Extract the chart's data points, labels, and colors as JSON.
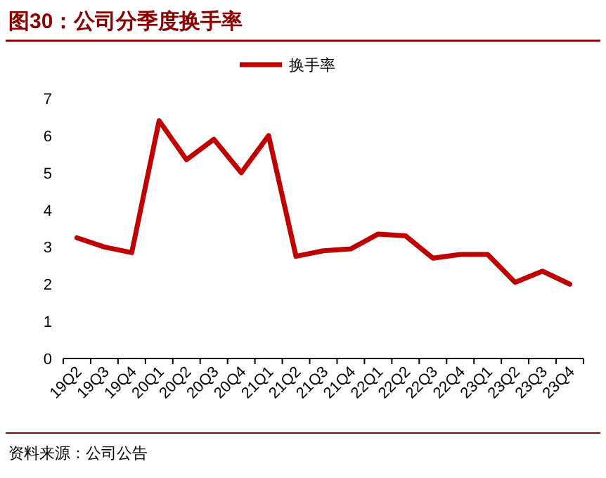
{
  "chart_data": {
    "type": "line",
    "title": "图30：公司分季度换手率",
    "categories": [
      "19Q2",
      "19Q3",
      "19Q4",
      "20Q1",
      "20Q2",
      "20Q3",
      "20Q4",
      "21Q1",
      "21Q2",
      "21Q3",
      "21Q4",
      "22Q1",
      "22Q2",
      "22Q3",
      "22Q4",
      "23Q1",
      "23Q2",
      "23Q3",
      "23Q4"
    ],
    "series": [
      {
        "name": "换手率",
        "color": "#c00000",
        "values": [
          3.25,
          3.0,
          2.85,
          6.4,
          5.35,
          5.9,
          5.0,
          6.0,
          2.75,
          2.9,
          2.95,
          3.35,
          3.3,
          2.7,
          2.8,
          2.8,
          2.05,
          2.35,
          2.0
        ]
      }
    ],
    "ylim": [
      0,
      7
    ],
    "yticks": [
      0,
      1,
      2,
      3,
      4,
      5,
      6,
      7
    ],
    "legend": "top",
    "grid": false,
    "annotations": [
      "资料来源：公司公告"
    ]
  }
}
